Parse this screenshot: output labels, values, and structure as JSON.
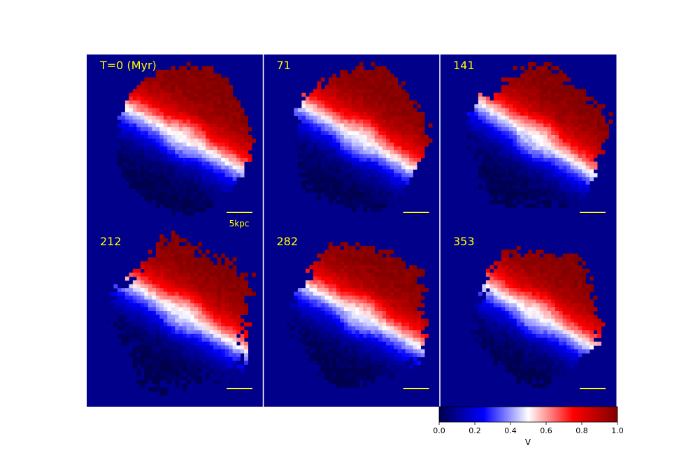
{
  "chart_data": {
    "type": "heatmap",
    "description_free": true,
    "panels": [
      {
        "time": "T=0 (Myr)",
        "pa_deg": -28,
        "rx": 0.9,
        "ry": 1.0,
        "jag": 0.05,
        "scale_label": "5kpc"
      },
      {
        "time": "71",
        "pa_deg": -30,
        "rx": 0.88,
        "ry": 0.95,
        "jag": 0.09,
        "scale_label": ""
      },
      {
        "time": "141",
        "pa_deg": -32,
        "rx": 0.92,
        "ry": 0.94,
        "jag": 0.12,
        "scale_label": ""
      },
      {
        "time": "212",
        "pa_deg": -30,
        "rx": 0.9,
        "ry": 0.96,
        "jag": 0.16,
        "scale_label": ""
      },
      {
        "time": "282",
        "pa_deg": -28,
        "rx": 0.9,
        "ry": 0.95,
        "jag": 0.1,
        "scale_label": ""
      },
      {
        "time": "353",
        "pa_deg": -30,
        "rx": 0.82,
        "ry": 0.9,
        "jag": 0.1,
        "scale_label": ""
      }
    ],
    "colorbar": {
      "label": "V",
      "range": [
        0.0,
        1.0
      ],
      "ticks": [
        "0.0",
        "0.2",
        "0.4",
        "0.6",
        "0.8",
        "1.0"
      ],
      "colormap": "seismic"
    }
  },
  "colors": {
    "background_value": "#00008b",
    "label": "#ffff00"
  }
}
